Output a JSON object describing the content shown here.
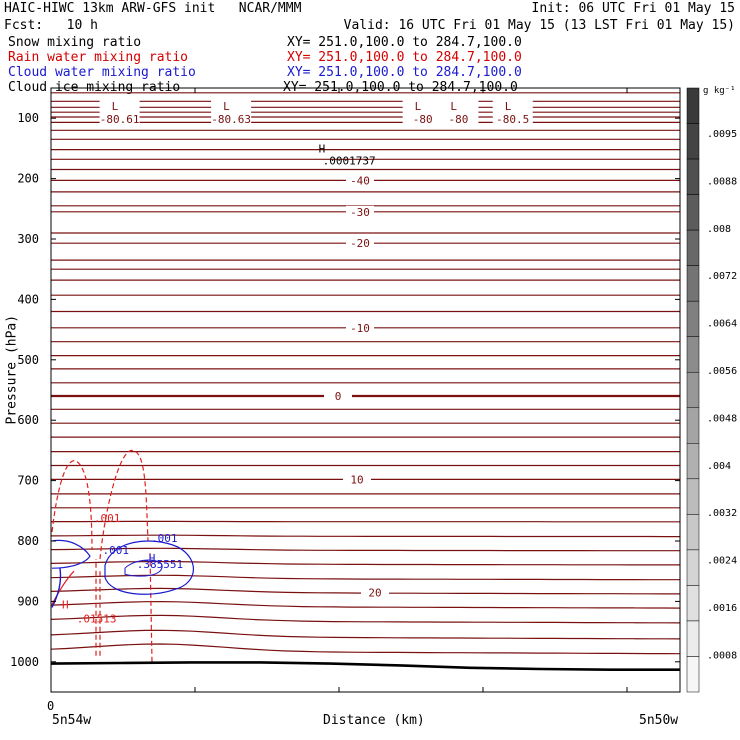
{
  "header": {
    "title": "HAIC-HIWC 13km ARW-GFS init   NCAR/MMM",
    "init": "Init: 06 UTC Fri 01 May 15",
    "fcst": "Fcst:   10 h",
    "valid": "Valid: 16 UTC Fri 01 May 15 (13 LST Fri 01 May 15)"
  },
  "legend": [
    {
      "name": "Snow mixing ratio",
      "xy": "XY= 251.0,100.0 to 284.7,100.0",
      "color": "#000000"
    },
    {
      "name": "Rain water mixing ratio",
      "xy": "XY= 251.0,100.0 to 284.7,100.0",
      "color": "#d40000"
    },
    {
      "name": "Cloud water mixing ratio",
      "xy": "XY= 251.0,100.0 to 284.7,100.0",
      "color": "#1a1ad0"
    },
    {
      "name": "Cloud ice mixing ratio",
      "xy": "XY= 251.0,100.0 to 284.7,100.0",
      "color": "#000000"
    }
  ],
  "chart_data": {
    "type": "line",
    "ylabel": "Pressure (hPa)",
    "xlabel": "Distance (km)",
    "x_start_label": "5n54w",
    "x_end_label": "5n50w",
    "x_zero_label": "0",
    "y_ticks": [
      100,
      200,
      300,
      400,
      500,
      600,
      700,
      800,
      900,
      1000
    ],
    "ylim": [
      1050,
      50
    ],
    "xlim": [
      0,
      440
    ],
    "temperature_levels": [
      {
        "p": 58
      },
      {
        "p": 72
      },
      {
        "p": 82
      },
      {
        "p": 90
      },
      {
        "p": 98
      },
      {
        "p": 107
      },
      {
        "p": 120
      },
      {
        "p": 135
      },
      {
        "p": 152
      },
      {
        "p": 168
      },
      {
        "p": 185
      },
      {
        "p": 203,
        "label": "-40"
      },
      {
        "p": 222
      },
      {
        "p": 245
      },
      {
        "p": 255,
        "label": "-30"
      },
      {
        "p": 290
      },
      {
        "p": 307,
        "label": "-20"
      },
      {
        "p": 335
      },
      {
        "p": 350
      },
      {
        "p": 368
      },
      {
        "p": 393
      },
      {
        "p": 420
      },
      {
        "p": 447,
        "label": "-10"
      },
      {
        "p": 470
      },
      {
        "p": 493
      },
      {
        "p": 515
      },
      {
        "p": 538
      },
      {
        "p": 560,
        "label": "0"
      },
      {
        "p": 582
      },
      {
        "p": 605
      },
      {
        "p": 628
      },
      {
        "p": 652
      },
      {
        "p": 675
      },
      {
        "p": 698,
        "label": "10"
      },
      {
        "p": 722
      },
      {
        "p": 745
      },
      {
        "p": 768
      },
      {
        "p": 792
      },
      {
        "p": 815
      },
      {
        "p": 838
      },
      {
        "p": 862
      },
      {
        "p": 885,
        "label": "20"
      },
      {
        "p": 908
      },
      {
        "p": 932
      },
      {
        "p": 958
      },
      {
        "p": 982
      }
    ],
    "top_lows": [
      {
        "x": 48,
        "value": "-80.61"
      },
      {
        "x": 126,
        "value": "-80.63"
      },
      {
        "x": 260,
        "value": "-80"
      },
      {
        "x": 285,
        "value": "-80"
      },
      {
        "x": 323,
        "value": "-80.5"
      }
    ],
    "snow_max": {
      "x": 190,
      "p": 170,
      "value": ".0001737"
    },
    "rain_labels": [
      {
        "x": 30,
        "p": 762,
        "value": ".001"
      },
      {
        "x": 18,
        "p": 928,
        "value": ".01513"
      }
    ],
    "cloud_water_labels": [
      {
        "x": 36,
        "p": 815,
        "value": ".001"
      },
      {
        "x": 70,
        "p": 795,
        "value": ".001"
      },
      {
        "x": 60,
        "p": 838,
        "value": ".385551"
      }
    ],
    "terrain_p": [
      1003,
      1002,
      1001,
      1001,
      1003,
      1006,
      1010,
      1012,
      1013,
      1013
    ],
    "colorbar": {
      "unit": "g kg⁻¹",
      "labels": [
        ".0095",
        ".0088",
        ".008",
        ".0072",
        ".0064",
        ".0056",
        ".0048",
        ".004",
        ".0032",
        ".0024",
        ".0016",
        ".0008"
      ],
      "colors": [
        "#3a3a3a",
        "#444444",
        "#505050",
        "#5c5c5c",
        "#686868",
        "#747474",
        "#808080",
        "#8c8c8c",
        "#989898",
        "#a4a4a4",
        "#b0b0b0",
        "#bcbcbc",
        "#c8c8c8",
        "#d4d4d4",
        "#e0e0e0",
        "#ececec",
        "#f6f6f6"
      ]
    }
  }
}
